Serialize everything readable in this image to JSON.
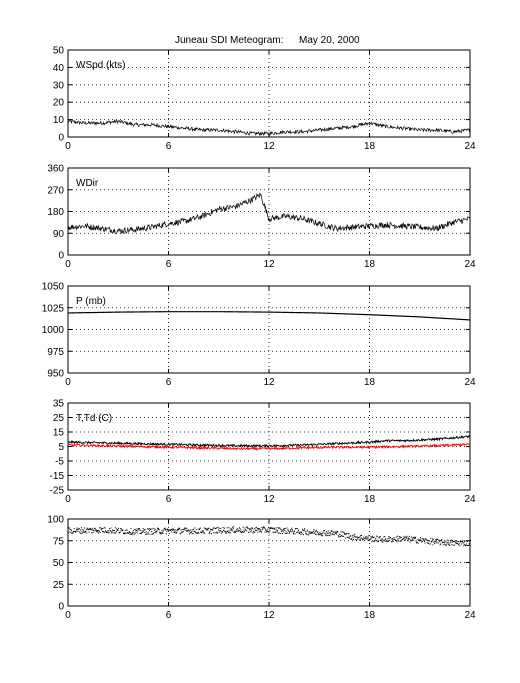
{
  "figure": {
    "title": "Juneau SDI Meteogram:",
    "date": "May 20, 2000"
  },
  "colors": {
    "black": "#000000",
    "red": "#ff0000",
    "grid": "#000000"
  },
  "chart_data": [
    {
      "type": "scatter",
      "label": "WSpd (kts)",
      "xlim": [
        0,
        24
      ],
      "ylim": [
        0,
        50
      ],
      "xticks": [
        0,
        6,
        12,
        18,
        24
      ],
      "yticks": [
        0,
        10,
        20,
        30,
        40,
        50
      ],
      "grid": true,
      "series": [
        {
          "color": "#000000",
          "x": [
            0,
            1,
            2,
            3,
            4,
            5,
            6,
            7,
            8,
            9,
            10,
            11,
            12,
            13,
            14,
            15,
            16,
            17,
            18,
            19,
            20,
            21,
            22,
            23,
            24
          ],
          "y": [
            9,
            8,
            8,
            9,
            7,
            7,
            6,
            5,
            4,
            4,
            3,
            2,
            2,
            3,
            3,
            4,
            5,
            6,
            8,
            6,
            5,
            4,
            4,
            3,
            4
          ]
        }
      ]
    },
    {
      "type": "scatter",
      "label": "WDir",
      "xlim": [
        0,
        24
      ],
      "ylim": [
        0,
        360
      ],
      "xticks": [
        0,
        6,
        12,
        18,
        24
      ],
      "yticks": [
        0,
        90,
        180,
        270,
        360
      ],
      "grid": true,
      "series": [
        {
          "color": "#000000",
          "x": [
            0,
            1,
            2,
            3,
            4,
            5,
            6,
            7,
            8,
            9,
            10,
            11,
            11.5,
            12,
            13,
            14,
            15,
            16,
            17,
            18,
            19,
            20,
            21,
            22,
            23,
            24
          ],
          "y": [
            115,
            120,
            110,
            100,
            105,
            115,
            130,
            140,
            160,
            190,
            200,
            230,
            250,
            150,
            160,
            150,
            130,
            110,
            115,
            120,
            125,
            120,
            115,
            110,
            135,
            150
          ]
        }
      ]
    },
    {
      "type": "line",
      "label": "P (mb)",
      "xlim": [
        0,
        24
      ],
      "ylim": [
        950,
        1050
      ],
      "xticks": [
        0,
        6,
        12,
        18,
        24
      ],
      "yticks": [
        950,
        975,
        1000,
        1025,
        1050
      ],
      "grid": true,
      "series": [
        {
          "color": "#000000",
          "x": [
            0,
            3,
            6,
            9,
            12,
            15,
            18,
            21,
            24
          ],
          "y": [
            1019,
            1020,
            1020.5,
            1020.5,
            1020,
            1019,
            1017,
            1014.5,
            1011
          ]
        }
      ]
    },
    {
      "type": "line",
      "label": "T,Td (C)",
      "xlim": [
        0,
        24
      ],
      "ylim": [
        -25,
        35
      ],
      "xticks": [
        0,
        6,
        12,
        18,
        24
      ],
      "yticks": [
        -25,
        -15,
        -5,
        5,
        15,
        25,
        35
      ],
      "grid": true,
      "series": [
        {
          "color": "#000000",
          "x": [
            0,
            2,
            4,
            6,
            8,
            10,
            12,
            14,
            16,
            18,
            19,
            20,
            22,
            24
          ],
          "y": [
            8,
            7.5,
            7,
            6.5,
            6,
            5.5,
            5.5,
            6,
            7,
            8,
            9,
            9,
            10,
            12
          ]
        },
        {
          "color": "#ff0000",
          "x": [
            0,
            2,
            4,
            6,
            8,
            10,
            12,
            14,
            16,
            18,
            20,
            22,
            24
          ],
          "y": [
            6,
            5.5,
            5,
            4.5,
            4,
            3.5,
            3.5,
            4,
            4.5,
            4.5,
            5,
            5.5,
            6.5
          ]
        }
      ]
    },
    {
      "type": "scatter",
      "label": "",
      "xlim": [
        0,
        24
      ],
      "ylim": [
        0,
        100
      ],
      "xticks": [
        0,
        6,
        12,
        18,
        24
      ],
      "yticks": [
        0,
        25,
        50,
        75,
        100
      ],
      "grid": true,
      "series": [
        {
          "color": "#000000",
          "x": [
            0,
            2,
            4,
            6,
            8,
            10,
            12,
            14,
            16,
            17,
            18,
            19,
            20,
            21,
            22,
            23,
            24
          ],
          "y": [
            87,
            88,
            86,
            87,
            87,
            88,
            88,
            86,
            84,
            80,
            78,
            77,
            78,
            76,
            74,
            73,
            73
          ]
        }
      ]
    }
  ]
}
